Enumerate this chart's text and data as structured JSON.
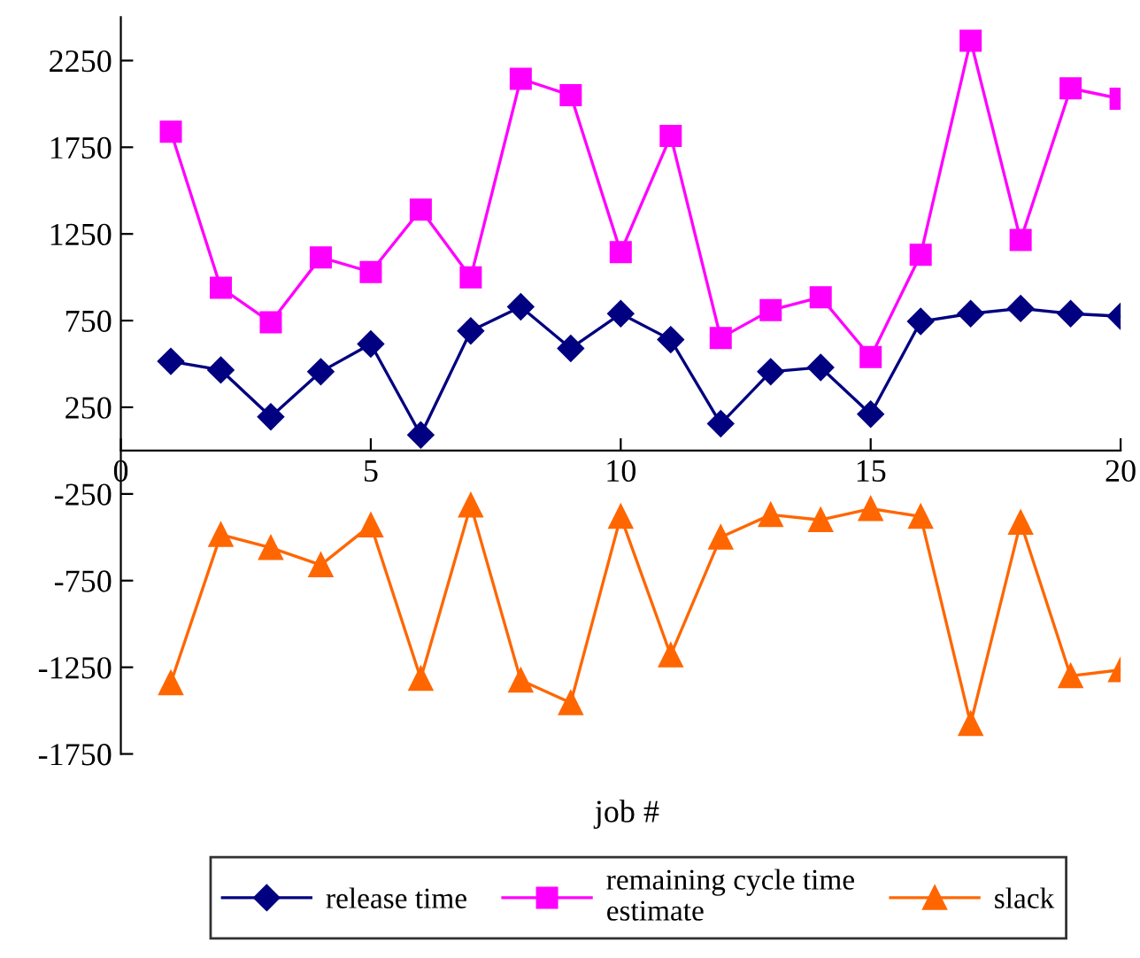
{
  "chart_data": {
    "type": "line",
    "xlabel": "job #",
    "x": [
      1,
      2,
      3,
      4,
      5,
      6,
      7,
      8,
      9,
      10,
      11,
      12,
      13,
      14,
      15,
      16,
      17,
      18,
      19,
      20
    ],
    "series": [
      {
        "name": "release time",
        "color": "#000080",
        "marker": "diamond",
        "values": [
          515,
          465,
          195,
          455,
          615,
          90,
          690,
          830,
          590,
          790,
          640,
          155,
          455,
          480,
          210,
          745,
          790,
          820,
          790,
          775
        ]
      },
      {
        "name": "remaining cycle time estimate",
        "color": "#ff00ff",
        "marker": "square",
        "values": [
          1840,
          940,
          740,
          1115,
          1030,
          1390,
          1000,
          2145,
          2050,
          1145,
          1815,
          650,
          810,
          885,
          540,
          1130,
          2365,
          1215,
          2090,
          2030
        ]
      },
      {
        "name": "slack",
        "color": "#ff6600",
        "marker": "triangle",
        "values": [
          -1340,
          -485,
          -560,
          -660,
          -430,
          -1315,
          -315,
          -1325,
          -1455,
          -380,
          -1180,
          -500,
          -370,
          -400,
          -335,
          -380,
          -1575,
          -415,
          -1300,
          -1265
        ]
      }
    ],
    "xlim": [
      0,
      20
    ],
    "xticks": [
      0,
      5,
      10,
      15,
      20
    ],
    "ylim": [
      -1750,
      2500
    ],
    "yticks": [
      -1750,
      -1250,
      -750,
      -250,
      250,
      750,
      1250,
      1750,
      2250
    ],
    "grid": false,
    "legend": "bottom",
    "line_style": "solid"
  }
}
